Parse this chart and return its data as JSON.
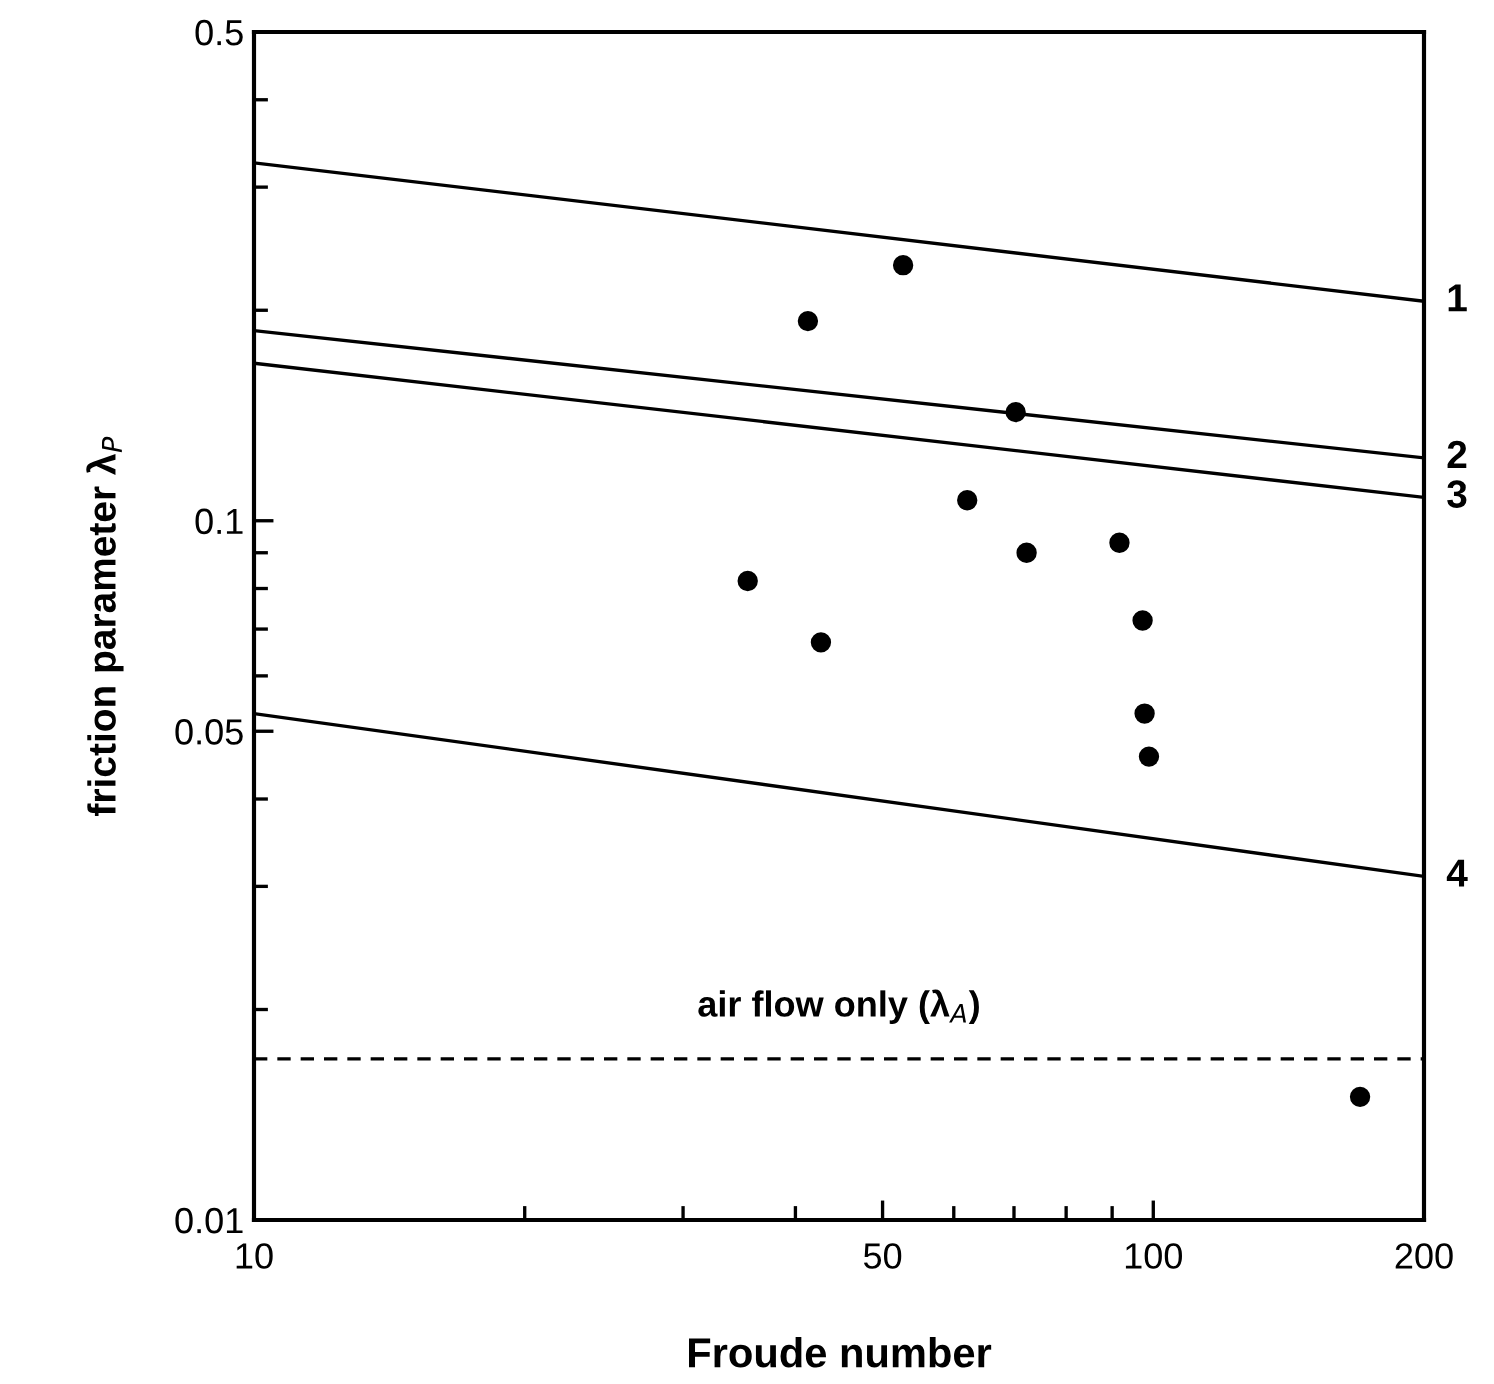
{
  "chart_data": {
    "type": "scatter",
    "xlabel": "Froude number",
    "ylabel": "friction parameter λ$_{P}$",
    "log": "xy",
    "xlim": [
      10,
      200
    ],
    "ylim": [
      0.01,
      0.5
    ],
    "xticks": [
      10,
      50,
      100,
      200
    ],
    "yticks": [
      0.01,
      0.05,
      0.1,
      0.5
    ],
    "grid": false,
    "legend": false,
    "series": [
      {
        "marker": "circle",
        "color": "#000000",
        "x": [
          52.7,
          41.3,
          70.3,
          62.1,
          72.3,
          91.7,
          35.4,
          97.3,
          42.7,
          97.8,
          98.9,
          169.8
        ],
        "values": [
          0.232,
          0.193,
          0.143,
          0.107,
          0.09,
          0.093,
          0.082,
          0.072,
          0.067,
          0.053,
          0.046,
          0.015
        ]
      },
      {
        "type": "line",
        "name": "1",
        "color": "#000000",
        "x": [
          10,
          200
        ],
        "values": [
          0.325,
          0.206
        ]
      },
      {
        "type": "line",
        "name": "2",
        "color": "#000000",
        "x": [
          10,
          200
        ],
        "values": [
          0.187,
          0.123
        ]
      },
      {
        "type": "line",
        "name": "3",
        "color": "#000000",
        "x": [
          10,
          200
        ],
        "values": [
          0.168,
          0.108
        ]
      },
      {
        "type": "line",
        "name": "4",
        "color": "#000000",
        "x": [
          10,
          200
        ],
        "values": [
          0.053,
          0.031
        ]
      }
    ],
    "ref_lines": [
      {
        "axis": "y",
        "value": 0.017,
        "label": "air flow only (λ$_{A}$)",
        "color": "#000000",
        "line_style": "dashed"
      }
    ]
  }
}
